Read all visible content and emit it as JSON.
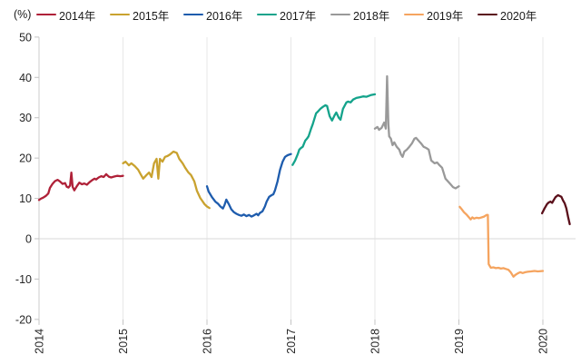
{
  "chart_data": {
    "type": "line",
    "title": "",
    "unit_label": "(%)",
    "xlabel": "",
    "ylabel": "",
    "ylim": [
      -20,
      50
    ],
    "yticks": [
      50,
      40,
      30,
      20,
      10,
      0,
      -10,
      -20
    ],
    "x_tick_years": [
      2014,
      2015,
      2016,
      2017,
      2018,
      2019,
      2020
    ],
    "x_tick_labels": [
      "2014",
      "2015",
      "2016",
      "2017",
      "2018",
      "2019",
      "2020"
    ],
    "legend_position": "top",
    "grid": {
      "vertical_year_gridlines": true,
      "zero_line": true,
      "horizontal_gridlines": false
    },
    "axis_colors": {
      "axis_line": "#d4d4d4",
      "gridline": "#e7e7e7",
      "zero_line": "#e0e0e0",
      "tick": "#c4c4c4",
      "label_text": "#262626"
    },
    "series": [
      {
        "name": "2014年",
        "color": "#af2138",
        "x": [
          2014.0,
          2014.02,
          2014.05,
          2014.08,
          2014.11,
          2014.13,
          2014.16,
          2014.19,
          2014.22,
          2014.25,
          2014.28,
          2014.31,
          2014.33,
          2014.35,
          2014.37,
          2014.385,
          2014.4,
          2014.42,
          2014.45,
          2014.48,
          2014.51,
          2014.54,
          2014.57,
          2014.6,
          2014.63,
          2014.66,
          2014.68,
          2014.71,
          2014.74,
          2014.77,
          2014.8,
          2014.83,
          2014.86,
          2014.89,
          2014.93,
          2014.97,
          2015.0
        ],
        "y": [
          9.6,
          9.9,
          10.2,
          10.6,
          11.2,
          12.6,
          13.6,
          14.3,
          14.6,
          14.2,
          13.6,
          13.8,
          12.9,
          12.7,
          13.2,
          16.4,
          12.9,
          12.0,
          13.0,
          13.9,
          13.5,
          13.7,
          13.4,
          14.0,
          14.5,
          14.9,
          14.7,
          15.2,
          15.5,
          15.3,
          16.0,
          15.4,
          15.2,
          15.4,
          15.6,
          15.5,
          15.6
        ]
      },
      {
        "name": "2015年",
        "color": "#c9a22f",
        "x": [
          2015.0,
          2015.03,
          2015.07,
          2015.1,
          2015.14,
          2015.18,
          2015.21,
          2015.24,
          2015.28,
          2015.31,
          2015.34,
          2015.37,
          2015.4,
          2015.42,
          2015.44,
          2015.47,
          2015.5,
          2015.53,
          2015.56,
          2015.6,
          2015.64,
          2015.67,
          2015.71,
          2015.74,
          2015.78,
          2015.81,
          2015.85,
          2015.88,
          2015.92,
          2015.95,
          2015.97,
          2016.0,
          2016.03
        ],
        "y": [
          18.7,
          19.1,
          18.2,
          18.7,
          18.0,
          17.1,
          16.0,
          14.9,
          15.8,
          16.4,
          15.3,
          18.7,
          19.8,
          14.9,
          19.8,
          19.1,
          20.3,
          20.5,
          20.9,
          21.6,
          21.3,
          19.8,
          18.7,
          17.6,
          16.4,
          15.8,
          14.2,
          11.9,
          10.1,
          9.2,
          8.6,
          8.0,
          7.6
        ]
      },
      {
        "name": "2016年",
        "color": "#1e5cad",
        "x": [
          2016.0,
          2016.02,
          2016.06,
          2016.1,
          2016.13,
          2016.16,
          2016.19,
          2016.21,
          2016.23,
          2016.26,
          2016.29,
          2016.32,
          2016.35,
          2016.38,
          2016.41,
          2016.44,
          2016.47,
          2016.5,
          2016.53,
          2016.56,
          2016.59,
          2016.61,
          2016.63,
          2016.66,
          2016.69,
          2016.71,
          2016.74,
          2016.77,
          2016.79,
          2016.81,
          2016.84,
          2016.87,
          2016.9,
          2016.93,
          2016.96,
          2017.0
        ],
        "y": [
          13.0,
          11.7,
          10.3,
          9.2,
          8.7,
          8.0,
          7.5,
          8.4,
          9.7,
          8.6,
          7.3,
          6.6,
          6.2,
          5.9,
          5.7,
          6.0,
          5.6,
          5.9,
          5.5,
          5.8,
          6.2,
          5.8,
          6.4,
          6.8,
          8.0,
          9.2,
          10.4,
          10.8,
          11.0,
          12.0,
          14.2,
          17.1,
          19.1,
          20.3,
          20.7,
          21.0
        ]
      },
      {
        "name": "2017年",
        "color": "#14a38b",
        "x": [
          2017.02,
          2017.05,
          2017.08,
          2017.1,
          2017.12,
          2017.14,
          2017.17,
          2017.19,
          2017.21,
          2017.24,
          2017.26,
          2017.3,
          2017.32,
          2017.35,
          2017.38,
          2017.41,
          2017.43,
          2017.46,
          2017.49,
          2017.52,
          2017.54,
          2017.57,
          2017.59,
          2017.62,
          2017.66,
          2017.68,
          2017.71,
          2017.74,
          2017.78,
          2017.82,
          2017.86,
          2017.9,
          2017.95,
          2018.0
        ],
        "y": [
          18.3,
          19.4,
          20.9,
          22.1,
          22.5,
          22.8,
          24.3,
          24.8,
          25.4,
          27.3,
          28.4,
          31.1,
          31.5,
          32.2,
          32.7,
          33.1,
          32.9,
          30.4,
          29.3,
          30.6,
          31.3,
          30.0,
          29.5,
          32.2,
          33.8,
          34.0,
          33.8,
          34.5,
          34.9,
          35.1,
          35.3,
          35.2,
          35.6,
          35.8
        ]
      },
      {
        "name": "2018年",
        "color": "#999999",
        "x": [
          2018.0,
          2018.03,
          2018.05,
          2018.08,
          2018.11,
          2018.13,
          2018.145,
          2018.16,
          2018.17,
          2018.19,
          2018.21,
          2018.23,
          2018.26,
          2018.29,
          2018.31,
          2018.33,
          2018.35,
          2018.38,
          2018.41,
          2018.44,
          2018.47,
          2018.49,
          2018.52,
          2018.55,
          2018.58,
          2018.61,
          2018.64,
          2018.67,
          2018.71,
          2018.74,
          2018.77,
          2018.8,
          2018.84,
          2018.87,
          2018.9,
          2018.93,
          2018.96,
          2019.0
        ],
        "y": [
          27.3,
          27.7,
          27.0,
          27.5,
          28.8,
          27.3,
          40.3,
          28.5,
          25.4,
          24.8,
          23.2,
          23.9,
          22.8,
          22.1,
          20.9,
          20.3,
          21.6,
          22.1,
          22.8,
          23.6,
          24.8,
          25.0,
          24.3,
          23.6,
          22.8,
          22.5,
          22.1,
          19.4,
          18.7,
          18.9,
          18.2,
          17.6,
          14.9,
          14.2,
          13.5,
          12.8,
          12.5,
          13.0
        ]
      },
      {
        "name": "2019年",
        "color": "#f5a45f",
        "x": [
          2019.01,
          2019.03,
          2019.06,
          2019.09,
          2019.12,
          2019.14,
          2019.16,
          2019.18,
          2019.21,
          2019.24,
          2019.27,
          2019.3,
          2019.33,
          2019.345,
          2019.355,
          2019.38,
          2019.41,
          2019.44,
          2019.47,
          2019.5,
          2019.53,
          2019.56,
          2019.59,
          2019.62,
          2019.65,
          2019.67,
          2019.7,
          2019.73,
          2019.76,
          2019.79,
          2019.82,
          2019.86,
          2019.9,
          2019.94,
          2020.0
        ],
        "y": [
          7.9,
          7.4,
          6.6,
          6.0,
          5.3,
          4.8,
          5.3,
          5.0,
          5.2,
          5.1,
          5.3,
          5.5,
          5.9,
          5.9,
          -6.3,
          -7.2,
          -7.1,
          -7.3,
          -7.2,
          -7.4,
          -7.3,
          -7.5,
          -7.7,
          -8.4,
          -9.4,
          -9.0,
          -8.6,
          -8.3,
          -8.5,
          -8.3,
          -8.2,
          -8.1,
          -8.0,
          -8.1,
          -8.0
        ]
      },
      {
        "name": "2020年",
        "color": "#5a0f1a",
        "x": [
          2019.99,
          2020.02,
          2020.05,
          2020.07,
          2020.09,
          2020.11,
          2020.13,
          2020.15,
          2020.18,
          2020.2,
          2020.22,
          2020.24,
          2020.26,
          2020.28,
          2020.3,
          2020.32
        ],
        "y": [
          6.3,
          7.5,
          8.6,
          9.0,
          9.2,
          8.9,
          9.6,
          10.3,
          10.8,
          10.6,
          10.4,
          9.5,
          8.8,
          7.5,
          5.5,
          3.6
        ]
      }
    ]
  }
}
